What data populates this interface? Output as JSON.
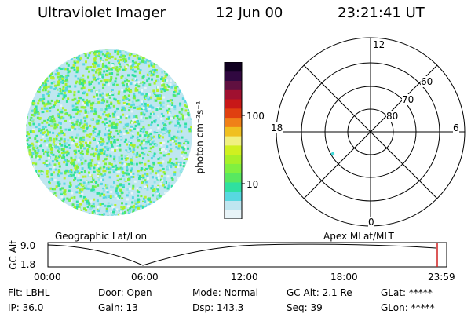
{
  "header": {
    "instrument": "Ultraviolet Imager",
    "date": "12 Jun 00",
    "time": "23:21:41 UT"
  },
  "colorbar": {
    "unit_label": "photon cm⁻²s⁻¹",
    "ticks": [
      "100",
      "10"
    ],
    "colors": [
      "#e8f4f8",
      "#bfe6f0",
      "#57d8e0",
      "#2fe0a0",
      "#58e860",
      "#80f040",
      "#a8f028",
      "#d0f020",
      "#f0f080",
      "#f0c020",
      "#f08018",
      "#e04010",
      "#c81818",
      "#a01030",
      "#601040",
      "#300840",
      "#100020"
    ]
  },
  "polar": {
    "labels": {
      "top": "12",
      "bottom": "0",
      "left": "18",
      "right": "6"
    },
    "lat_labels": [
      "60",
      "70",
      "80"
    ],
    "marker_color": "#3fd8d8"
  },
  "timeline": {
    "left_title": "Geographic Lat/Lon",
    "right_title": "Apex MLat/MLT",
    "y_axis_label": "GC Alt",
    "y_ticks": [
      "9.0",
      "1.8"
    ],
    "x_ticks": [
      "00:00",
      "06:00",
      "12:00",
      "18:00",
      "23:59"
    ],
    "current_marker_color": "#d02020"
  },
  "info": {
    "flt": "Flt: LBHL",
    "ip": "IP: 36.0",
    "door": "Door: Open",
    "gain": "Gain: 13",
    "mode": "Mode: Normal",
    "dsp": "Dsp:  143.3",
    "gcalt": "GC Alt: 2.1 Re",
    "seq": "Seq: 39",
    "glat": "GLat: *****",
    "glon": "GLon: *****"
  }
}
